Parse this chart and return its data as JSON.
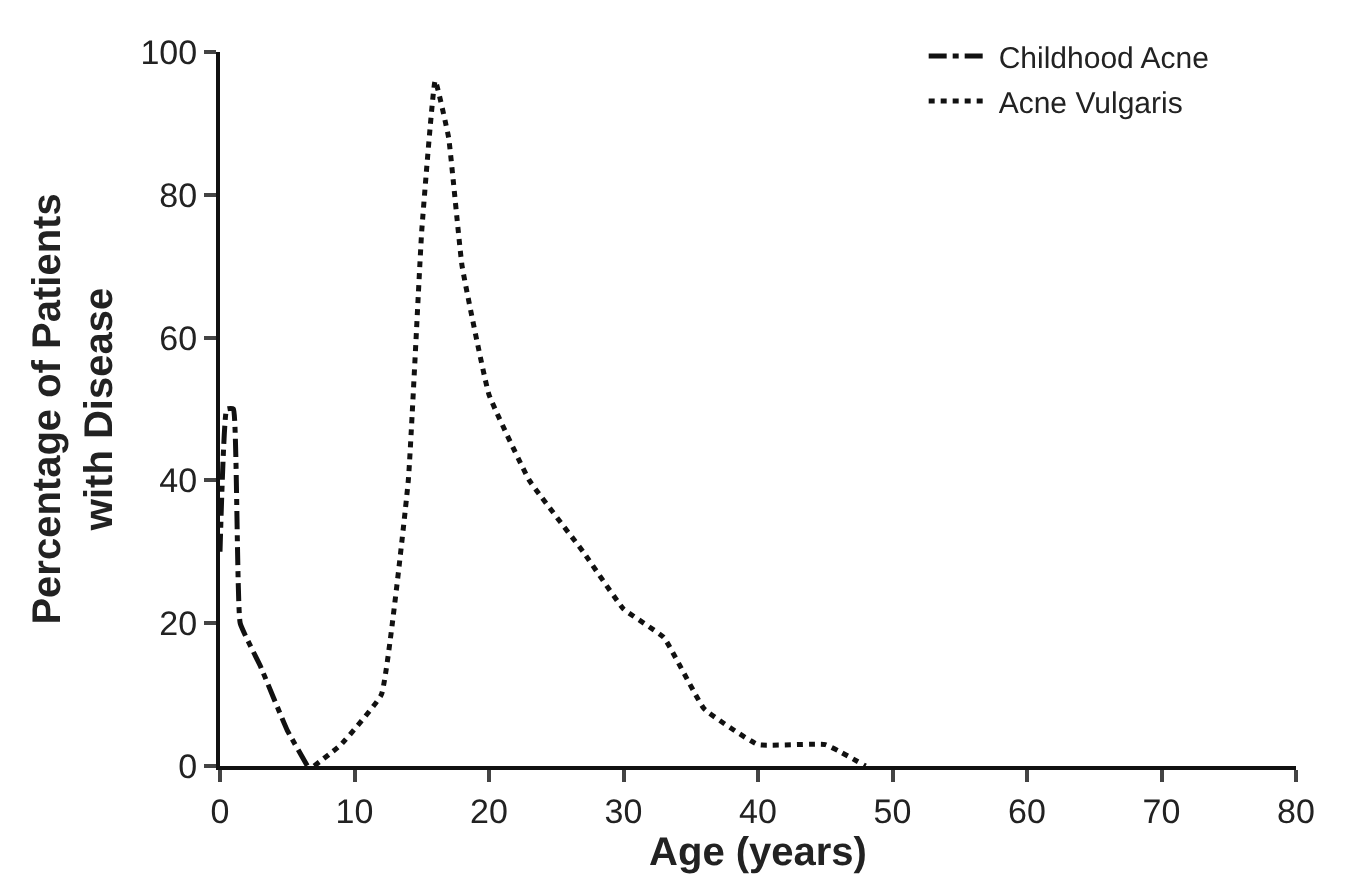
{
  "chart_data": {
    "type": "line",
    "xlabel": "Age (years)",
    "ylabel": "Percentage of Patients\nwith Disease",
    "xlim": [
      0,
      80
    ],
    "xticks": [
      0,
      10,
      20,
      30,
      40,
      50,
      60,
      70,
      80
    ],
    "ylim": [
      0,
      100
    ],
    "yticks": [
      0,
      20,
      40,
      60,
      80,
      100
    ],
    "legend": "top right",
    "marker": "none",
    "series": [
      {
        "name": "Childhood Acne",
        "color": "#111111",
        "line_style": "dashdot",
        "x": [
          0,
          0.5,
          1,
          1.5,
          3,
          5,
          6.5
        ],
        "values": [
          30,
          50,
          50,
          20,
          14,
          5,
          0
        ]
      },
      {
        "name": "Acne Vulgaris",
        "color": "#111111",
        "line_style": "dotted",
        "x": [
          7,
          9,
          12,
          14,
          15,
          16,
          17,
          18,
          20,
          23,
          27,
          30,
          33,
          36,
          40,
          45,
          48
        ],
        "values": [
          0,
          3,
          10,
          40,
          75,
          96,
          88,
          70,
          52,
          40,
          30,
          22,
          18,
          8,
          3,
          3,
          0
        ]
      }
    ]
  }
}
